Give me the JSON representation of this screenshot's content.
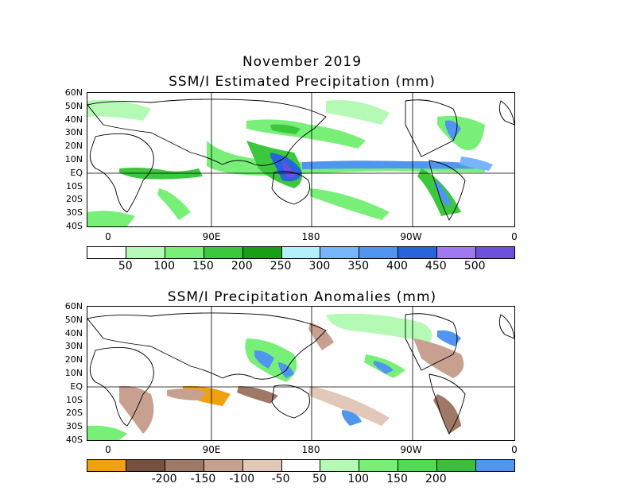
{
  "header": {
    "month_title": "November 2019"
  },
  "map1": {
    "title": "SSM/I Estimated Precipitation (mm)",
    "lat_labels": [
      "60N",
      "50N",
      "40N",
      "30N",
      "20N",
      "10N",
      "EQ",
      "10S",
      "20S",
      "30S",
      "40S"
    ],
    "lon_labels": [
      "0",
      "90E",
      "180",
      "90W",
      "0"
    ],
    "colorbar": {
      "colors": [
        "#ffffff",
        "#b4fab4",
        "#78f078",
        "#3cc83c",
        "#17a017",
        "#b4f0fa",
        "#78b4fa",
        "#5096f0",
        "#2864dc",
        "#a078f0",
        "#6e50dc"
      ],
      "labels": [
        "50",
        "100",
        "150",
        "200",
        "250",
        "300",
        "350",
        "400",
        "450",
        "500"
      ]
    }
  },
  "map2": {
    "title": "SSM/I Precipitation Anomalies (mm)",
    "lat_labels": [
      "60N",
      "50N",
      "40N",
      "30N",
      "20N",
      "10N",
      "EQ",
      "10S",
      "20S",
      "30S",
      "40S"
    ],
    "lon_labels": [
      "0",
      "90E",
      "180",
      "90W",
      "0"
    ],
    "colorbar": {
      "colors": [
        "#f0a010",
        "#785040",
        "#a07868",
        "#c8a090",
        "#e1c8b9",
        "#ffffff",
        "#b4fab4",
        "#78f078",
        "#50dc50",
        "#3cbe3c",
        "#5096f0"
      ],
      "labels": [
        "-200",
        "-150",
        "-100",
        "-50",
        "50",
        "100",
        "150",
        "200"
      ]
    }
  }
}
